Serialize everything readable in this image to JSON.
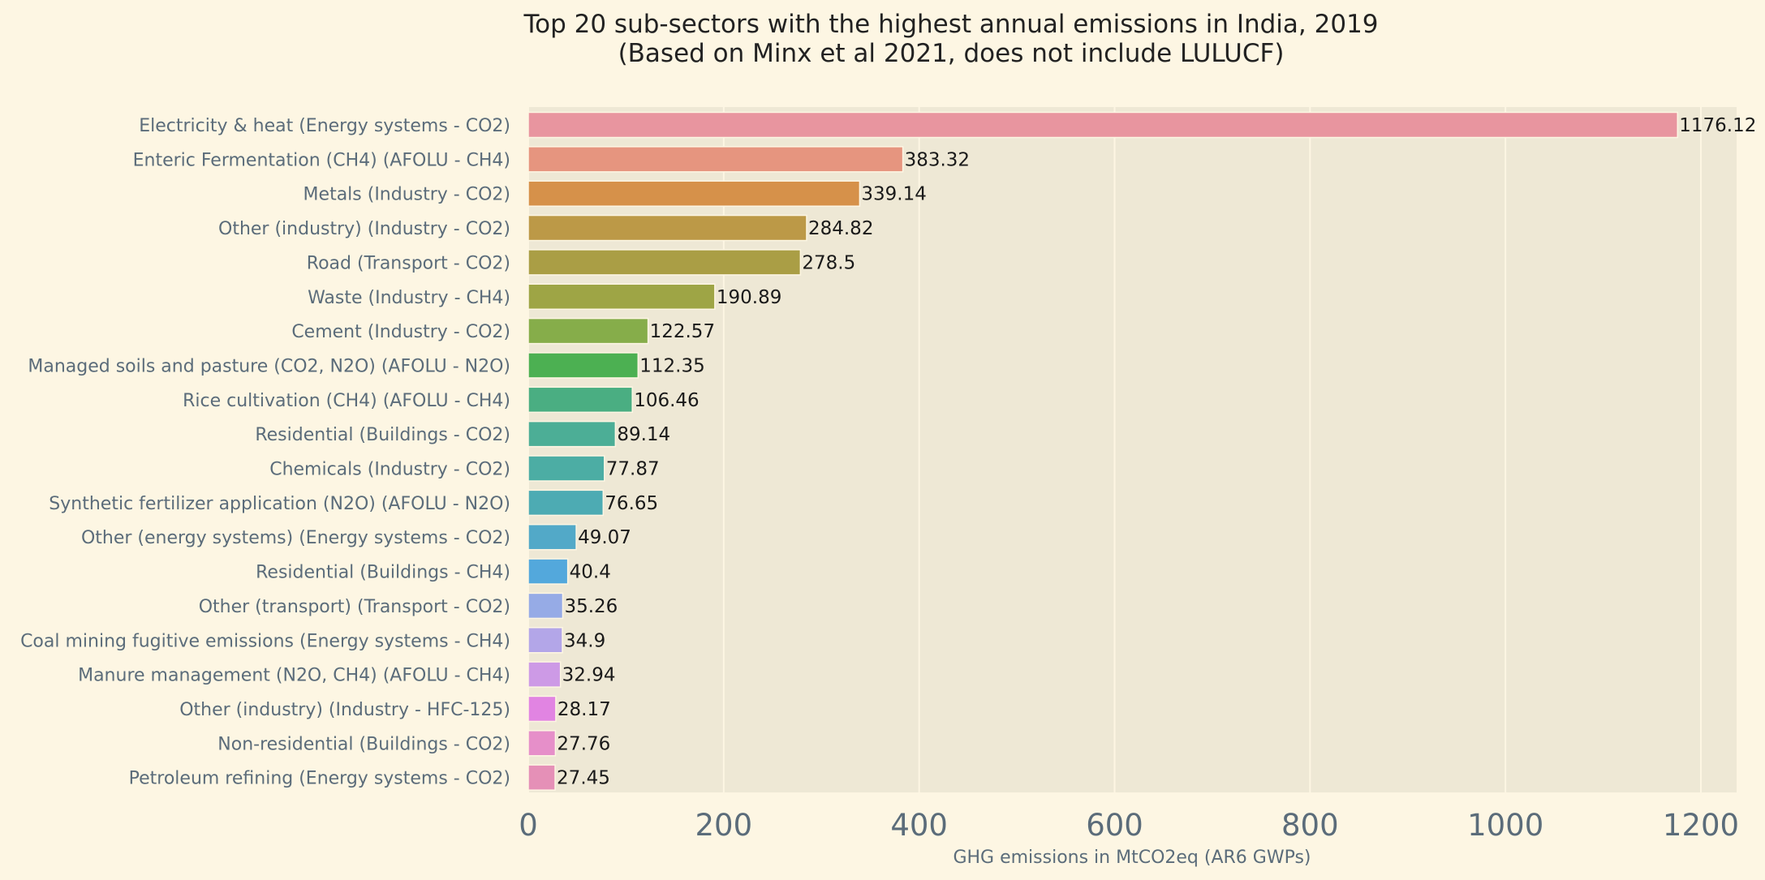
{
  "chart_data": {
    "type": "bar",
    "orientation": "horizontal",
    "title_lines": [
      "Top 20 sub-sectors with the highest annual emissions in India, 2019",
      "(Based on Minx et al 2021, does not include LULUCF)"
    ],
    "xlabel": "GHG emissions in MtCO2eq (AR6 GWPs)",
    "ylabel": "",
    "xlim": [
      0,
      1240
    ],
    "xticks": [
      0,
      200,
      400,
      600,
      800,
      1000,
      1200
    ],
    "xtick_labels": [
      "0",
      "200",
      "400",
      "600",
      "800",
      "1000",
      "1200"
    ],
    "grid": true,
    "categories": [
      "Electricity & heat (Energy systems - CO2)",
      "Enteric Fermentation (CH4) (AFOLU - CH4)",
      "Metals (Industry - CO2)",
      "Other (industry) (Industry - CO2)",
      "Road (Transport - CO2)",
      "Waste (Industry - CH4)",
      "Cement (Industry - CO2)",
      "Managed soils and pasture (CO2, N2O) (AFOLU - N2O)",
      "Rice cultivation (CH4) (AFOLU - CH4)",
      "Residential (Buildings - CO2)",
      "Chemicals (Industry - CO2)",
      "Synthetic fertilizer application (N2O) (AFOLU - N2O)",
      "Other (energy systems) (Energy systems - CO2)",
      "Residential (Buildings - CH4)",
      "Other (transport) (Transport - CO2)",
      "Coal mining fugitive emissions (Energy systems - CH4)",
      "Manure management (N2O, CH4) (AFOLU - CH4)",
      "Other (industry) (Industry - HFC-125)",
      "Non-residential (Buildings - CO2)",
      "Petroleum refining (Energy systems - CO2)"
    ],
    "values": [
      1176.12,
      383.32,
      339.14,
      284.82,
      278.5,
      190.89,
      122.57,
      112.35,
      106.46,
      89.14,
      77.87,
      76.65,
      49.07,
      40.4,
      35.26,
      34.9,
      32.94,
      28.17,
      27.76,
      27.45
    ],
    "value_labels": [
      "1176.12",
      "383.32",
      "339.14",
      "284.82",
      "278.5",
      "190.89",
      "122.57",
      "112.35",
      "106.46",
      "89.14",
      "77.87",
      "76.65",
      "49.07",
      "40.4",
      "35.26",
      "34.9",
      "32.94",
      "28.17",
      "27.76",
      "27.45"
    ],
    "bar_colors": [
      "#e8959f",
      "#e6957f",
      "#d6914a",
      "#bc9947",
      "#aa9e45",
      "#9ea545",
      "#86ad4a",
      "#4cb052",
      "#4aae82",
      "#4cae96",
      "#4cada4",
      "#4dabb3",
      "#52a9c8",
      "#53a8dc",
      "#96abe6",
      "#b3a6e8",
      "#cd9ae6",
      "#e184e2",
      "#e68fc9",
      "#e590b7"
    ]
  },
  "colors": {
    "page_background": "#fdf6e3",
    "plot_background": "#eee8d5",
    "grid": "#fdf6e3",
    "text_muted": "#5b6c7a",
    "text_dark": "#1a1a1a"
  }
}
